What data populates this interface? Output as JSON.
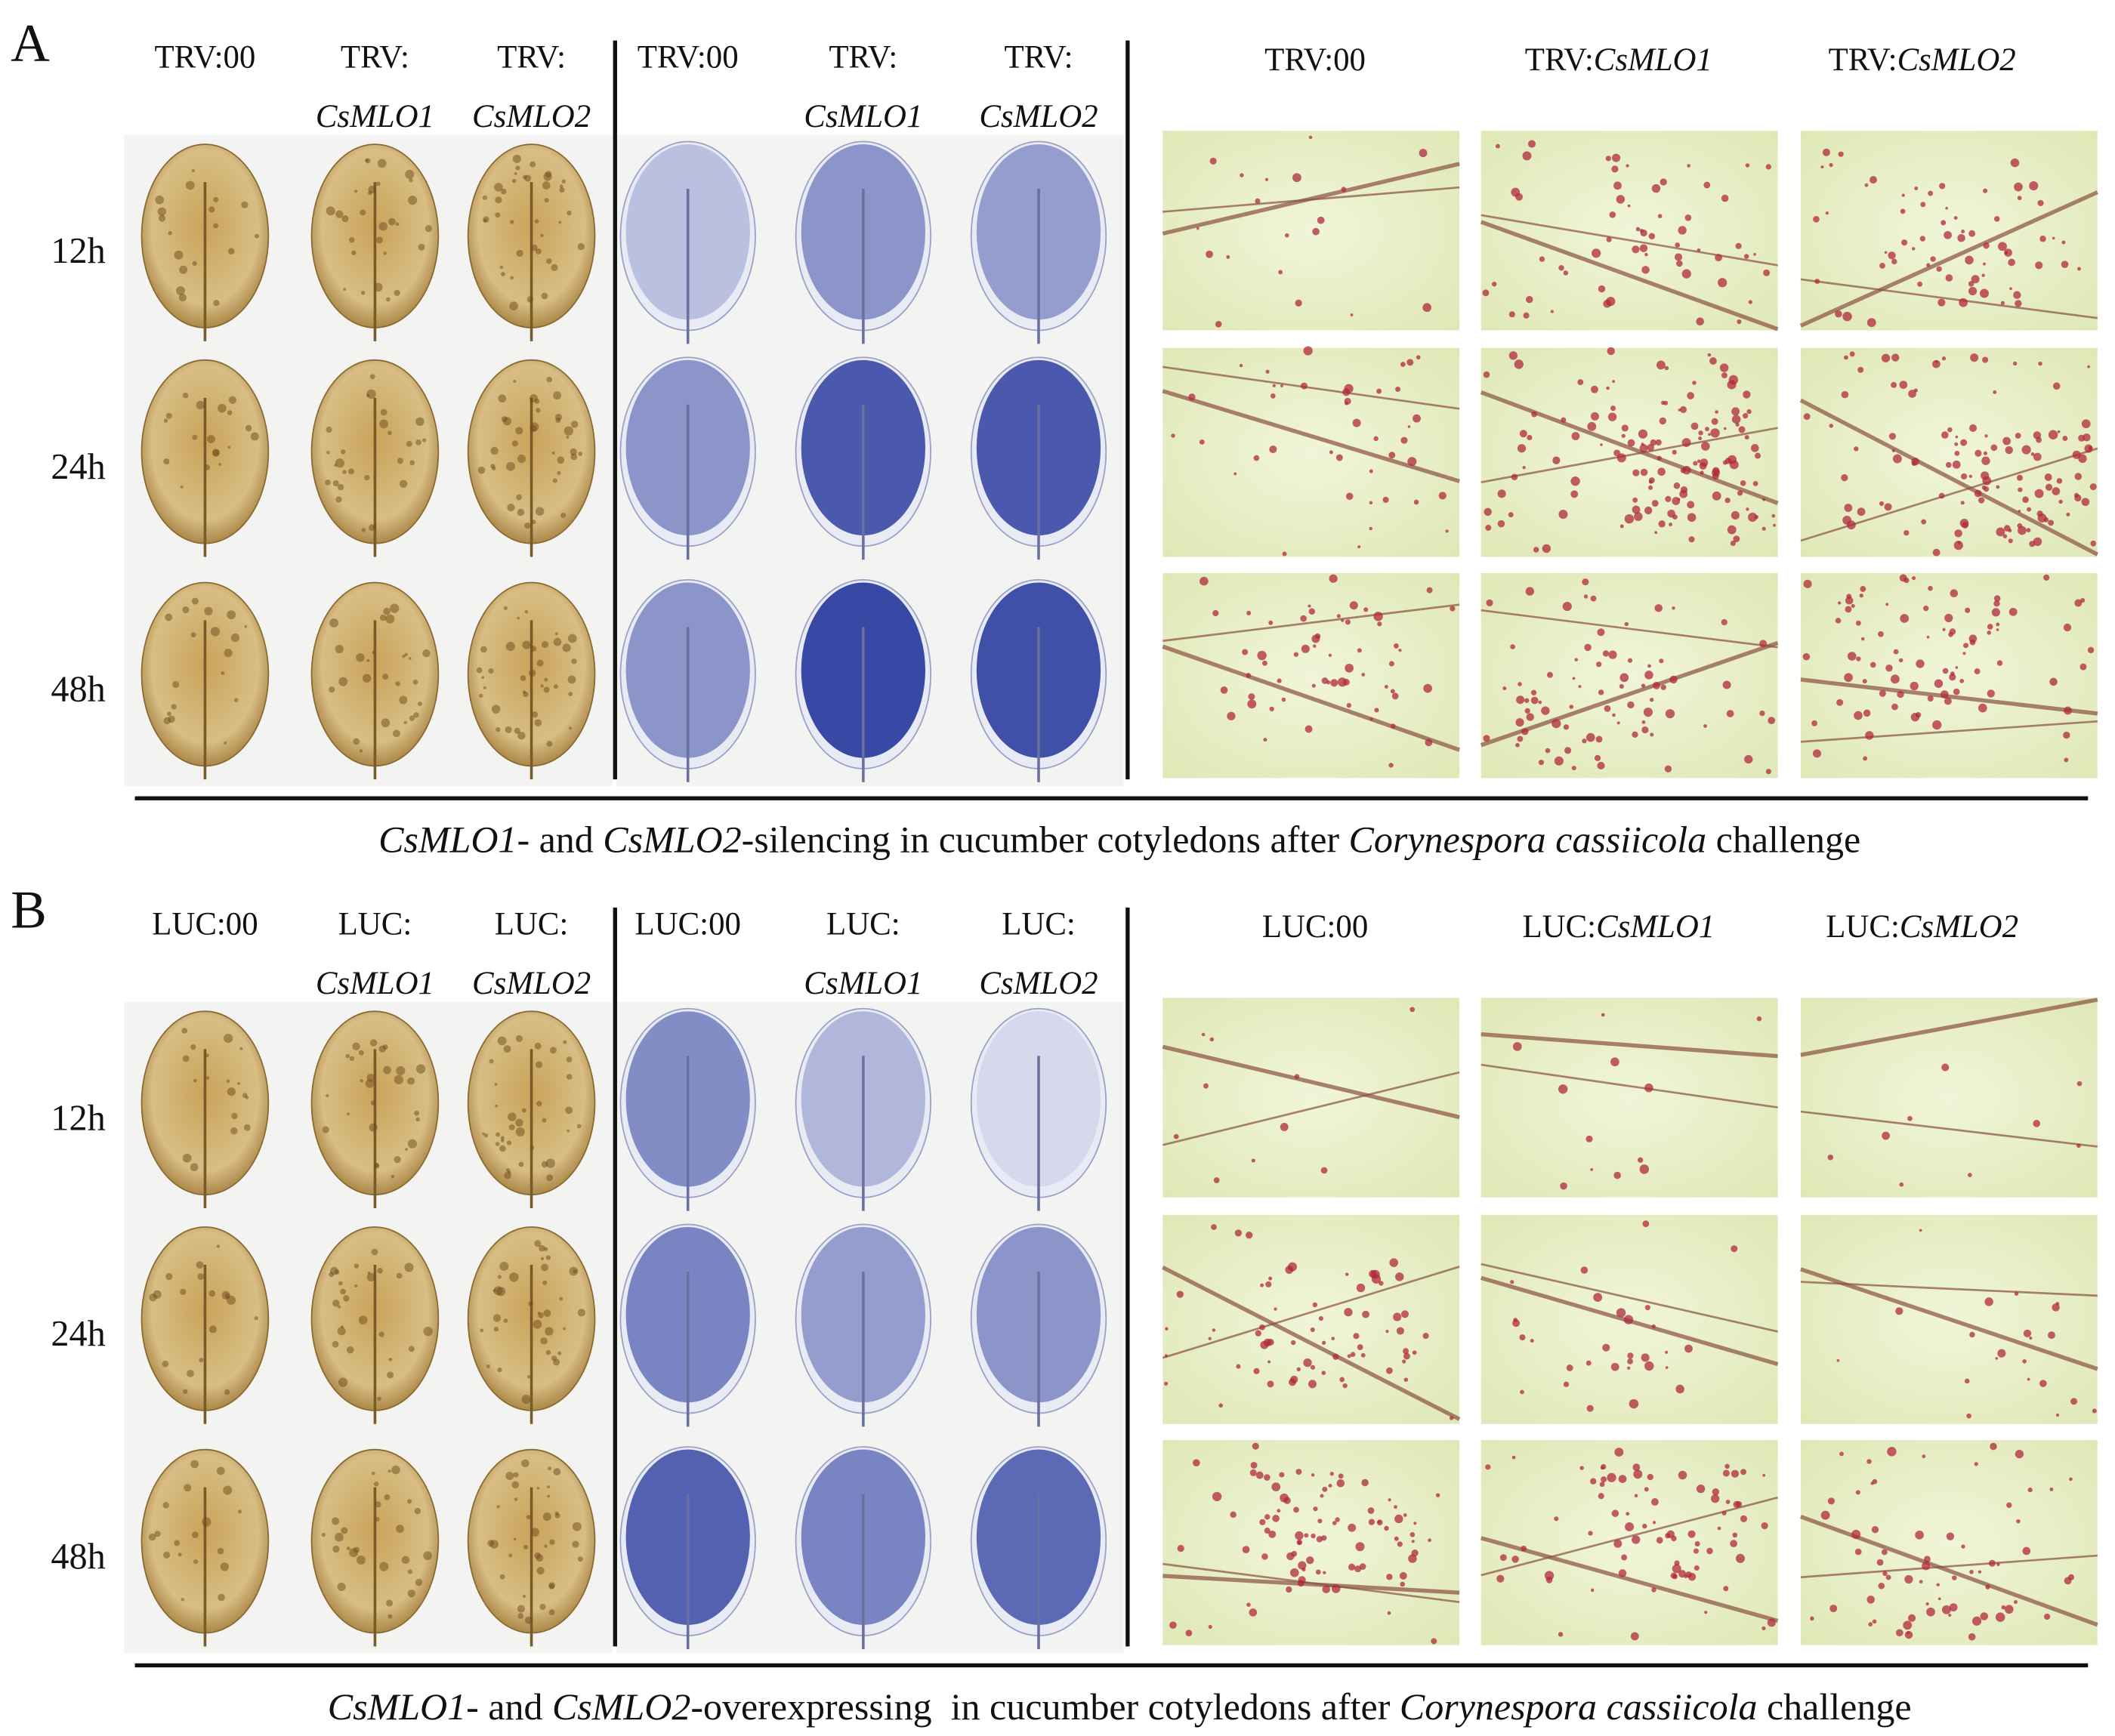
{
  "panels": [
    {
      "label": "A",
      "groups": [
        {
          "headers": [
            {
              "prefix": "TRV:00"
            },
            {
              "prefix": "TRV:",
              "gene": "CsMLO1"
            },
            {
              "prefix": "TRV:",
              "gene": "CsMLO2"
            }
          ]
        },
        {
          "headers": [
            {
              "prefix": "TRV:00"
            },
            {
              "prefix": "TRV:",
              "gene": "CsMLO1"
            },
            {
              "prefix": "TRV:",
              "gene": "CsMLO2"
            }
          ]
        },
        {
          "headers": [
            {
              "prefix": "TRV:00"
            },
            {
              "prefix": "TRV:",
              "gene": "CsMLO1"
            },
            {
              "prefix": "TRV:",
              "gene": "CsMLO2"
            }
          ]
        }
      ],
      "rows": [
        "12h",
        "24h",
        "48h"
      ],
      "caption": [
        {
          "text": "CsMLO1",
          "italic": true
        },
        {
          "text": "- and "
        },
        {
          "text": "CsMLO2",
          "italic": true
        },
        {
          "text": "-silencing in cucumber cotyledons after "
        },
        {
          "text": "Corynespora cassiicola",
          "italic": true
        },
        {
          "text": " challenge"
        }
      ]
    },
    {
      "label": "B",
      "groups": [
        {
          "headers": [
            {
              "prefix": "LUC:00"
            },
            {
              "prefix": "LUC:",
              "gene": "CsMLO1"
            },
            {
              "prefix": "LUC:",
              "gene": "CsMLO2"
            }
          ]
        },
        {
          "headers": [
            {
              "prefix": "LUC:00"
            },
            {
              "prefix": "LUC:",
              "gene": "CsMLO1"
            },
            {
              "prefix": "LUC:",
              "gene": "CsMLO2"
            }
          ]
        },
        {
          "headers": [
            {
              "prefix": "LUC:00"
            },
            {
              "prefix": "LUC:",
              "gene": "CsMLO1"
            },
            {
              "prefix": "LUC:",
              "gene": "CsMLO2"
            }
          ]
        }
      ],
      "rows": [
        "12h",
        "24h",
        "48h"
      ],
      "caption": [
        {
          "text": "CsMLO1",
          "italic": true
        },
        {
          "text": "- and "
        },
        {
          "text": "CsMLO2",
          "italic": true
        },
        {
          "text": "-overexpressing  in cucumber cotyledons after "
        },
        {
          "text": "Corynespora cassiicola",
          "italic": true
        },
        {
          "text": " challenge"
        }
      ]
    }
  ]
}
